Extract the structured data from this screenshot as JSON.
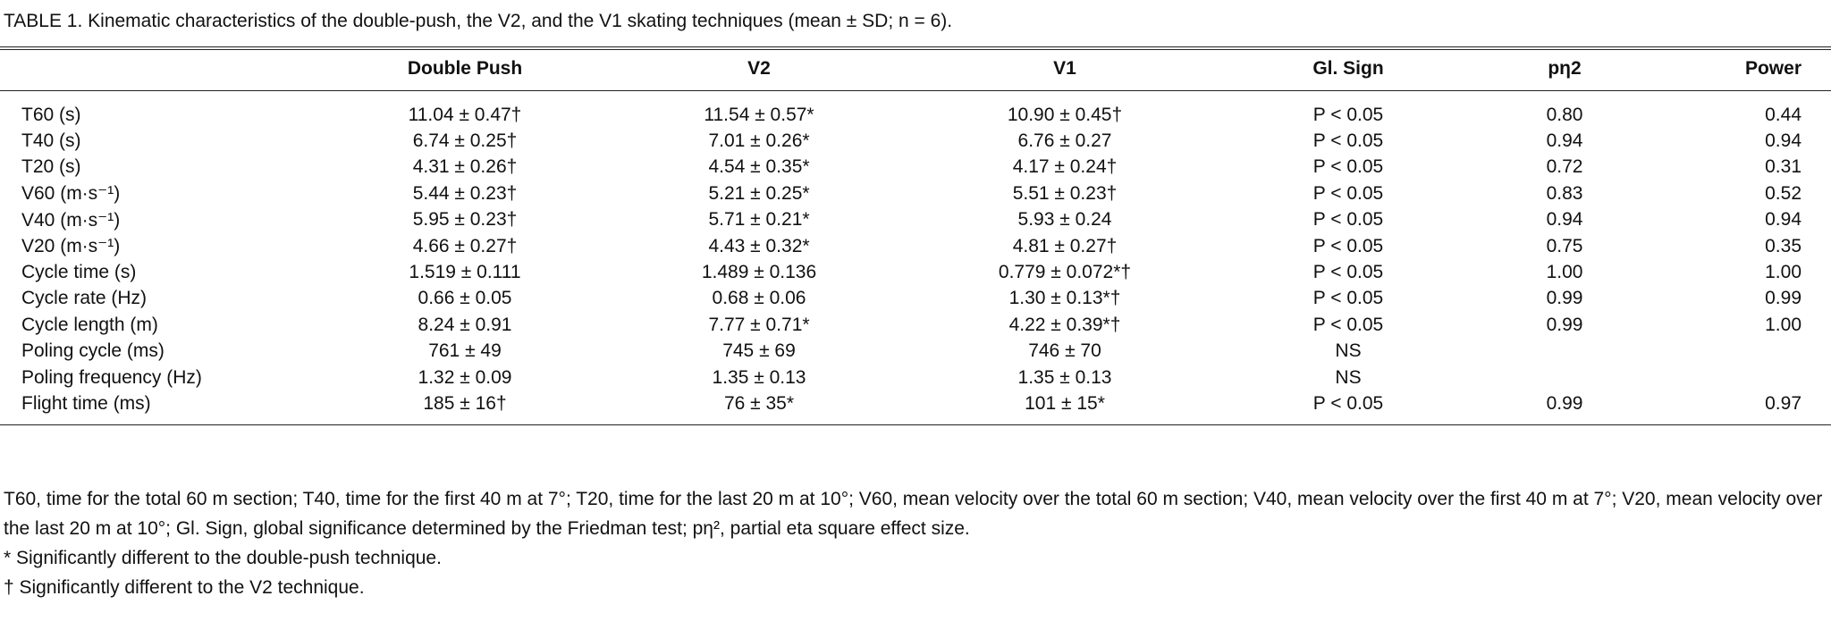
{
  "title": "TABLE 1. Kinematic characteristics of the double-push, the V2, and the V1 skating techniques (mean ± SD; n = 6).",
  "table": {
    "columns": [
      "Double Push",
      "V2",
      "V1",
      "Gl. Sign",
      "pη2",
      "Power"
    ],
    "rows": [
      {
        "label": "T60 (s)",
        "cells": [
          "11.04 ± 0.47†",
          "11.54 ± 0.57*",
          "10.90 ± 0.45†",
          "P < 0.05",
          "0.80",
          "0.44"
        ]
      },
      {
        "label": "T40 (s)",
        "cells": [
          "6.74 ± 0.25†",
          "7.01 ± 0.26*",
          "6.76 ± 0.27",
          "P < 0.05",
          "0.94",
          "0.94"
        ]
      },
      {
        "label": "T20 (s)",
        "cells": [
          "4.31 ± 0.26†",
          "4.54 ± 0.35*",
          "4.17 ± 0.24†",
          "P < 0.05",
          "0.72",
          "0.31"
        ]
      },
      {
        "label": "V60 (m·s⁻¹)",
        "cells": [
          "5.44 ± 0.23†",
          "5.21 ± 0.25*",
          "5.51 ± 0.23†",
          "P < 0.05",
          "0.83",
          "0.52"
        ]
      },
      {
        "label": "V40 (m·s⁻¹)",
        "cells": [
          "5.95 ± 0.23†",
          "5.71 ± 0.21*",
          "5.93 ± 0.24",
          "P < 0.05",
          "0.94",
          "0.94"
        ]
      },
      {
        "label": "V20 (m·s⁻¹)",
        "cells": [
          "4.66 ± 0.27†",
          "4.43 ± 0.32*",
          "4.81 ± 0.27†",
          "P < 0.05",
          "0.75",
          "0.35"
        ]
      },
      {
        "label": "Cycle time (s)",
        "cells": [
          "1.519 ± 0.111",
          "1.489 ± 0.136",
          "0.779 ± 0.072*†",
          "P < 0.05",
          "1.00",
          "1.00"
        ]
      },
      {
        "label": "Cycle rate (Hz)",
        "cells": [
          "0.66 ± 0.05",
          "0.68 ± 0.06",
          "1.30 ± 0.13*†",
          "P < 0.05",
          "0.99",
          "0.99"
        ]
      },
      {
        "label": "Cycle length (m)",
        "cells": [
          "8.24 ± 0.91",
          "7.77 ± 0.71*",
          "4.22 ± 0.39*†",
          "P < 0.05",
          "0.99",
          "1.00"
        ]
      },
      {
        "label": "Poling cycle (ms)",
        "cells": [
          "761 ± 49",
          "745 ± 69",
          "746 ± 70",
          "NS"
        ]
      },
      {
        "label": "Poling frequency (Hz)",
        "cells": [
          "1.32 ± 0.09",
          "1.35 ± 0.13",
          "1.35 ± 0.13",
          "NS"
        ]
      },
      {
        "label": "Flight time (ms)",
        "cells": [
          "185 ± 16†",
          "76 ± 35*",
          "101 ± 15*",
          "P < 0.05",
          "0.99",
          "0.97"
        ]
      }
    ]
  },
  "footnotes": [
    "T60, time for the total 60 m section; T40, time for the first 40 m at 7°; T20, time for the last 20 m at 10°; V60, mean velocity over the total 60 m section; V40, mean velocity over the first 40 m at 7°; V20, mean velocity over the last 20 m at 10°; Gl. Sign, global significance determined by the Friedman test; pη², partial eta square effect size.",
    "* Significantly different to the double-push technique.",
    "† Significantly different to the V2 technique."
  ]
}
